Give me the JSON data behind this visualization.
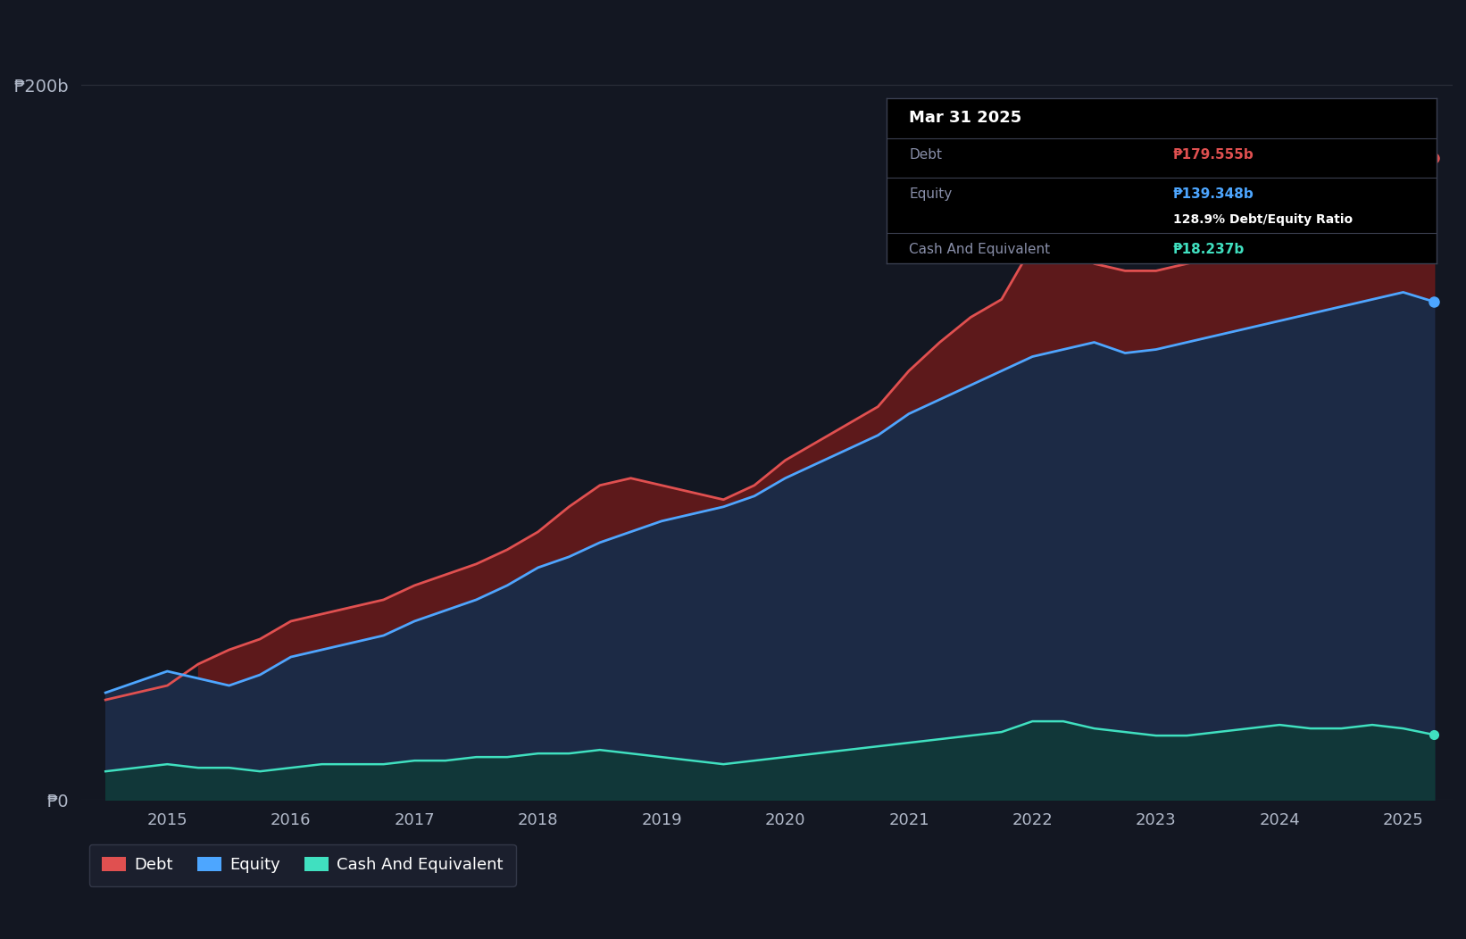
{
  "background_color": "#131722",
  "plot_bg_color": "#131722",
  "grid_color": "#2a2e39",
  "title_box_bg": "#000000",
  "tooltip": {
    "date": "Mar 31 2025",
    "debt_label": "Debt",
    "debt_value": "₱179.555b",
    "equity_label": "Equity",
    "equity_value": "₱139.348b",
    "ratio_text": "128.9% Debt/Equity Ratio",
    "cash_label": "Cash And Equivalent",
    "cash_value": "₱18.237b"
  },
  "ylabel_200": "₱200b",
  "ylabel_0": "₱0",
  "debt_color": "#e05050",
  "equity_color": "#4da6ff",
  "cash_color": "#40e0c0",
  "debt_fill_color": "#6b1a1a",
  "equity_fill_color": "#1e2d4a",
  "cash_fill_color": "#0d3d35",
  "ylim": [
    0,
    220
  ],
  "xlim": [
    2014.3,
    2025.4
  ],
  "years": [
    2014.5,
    2014.75,
    2015.0,
    2015.25,
    2015.5,
    2015.75,
    2016.0,
    2016.25,
    2016.5,
    2016.75,
    2017.0,
    2017.25,
    2017.5,
    2017.75,
    2018.0,
    2018.25,
    2018.5,
    2018.75,
    2019.0,
    2019.25,
    2019.5,
    2019.75,
    2020.0,
    2020.25,
    2020.5,
    2020.75,
    2021.0,
    2021.25,
    2021.5,
    2021.75,
    2022.0,
    2022.25,
    2022.5,
    2022.75,
    2023.0,
    2023.25,
    2023.5,
    2023.75,
    2024.0,
    2024.25,
    2024.5,
    2024.75,
    2025.0,
    2025.25
  ],
  "debt": [
    28,
    30,
    32,
    38,
    42,
    45,
    50,
    52,
    54,
    56,
    60,
    63,
    66,
    70,
    75,
    82,
    88,
    90,
    88,
    86,
    84,
    88,
    95,
    100,
    105,
    110,
    120,
    128,
    135,
    140,
    155,
    158,
    150,
    148,
    148,
    150,
    152,
    155,
    158,
    162,
    168,
    178,
    190,
    179.555
  ],
  "equity": [
    30,
    33,
    36,
    34,
    32,
    35,
    40,
    42,
    44,
    46,
    50,
    53,
    56,
    60,
    65,
    68,
    72,
    75,
    78,
    80,
    82,
    85,
    90,
    94,
    98,
    102,
    108,
    112,
    116,
    120,
    124,
    126,
    128,
    125,
    126,
    128,
    130,
    132,
    134,
    136,
    138,
    140,
    142,
    139.348
  ],
  "cash": [
    8,
    9,
    10,
    9,
    9,
    8,
    9,
    10,
    10,
    10,
    11,
    11,
    12,
    12,
    13,
    13,
    14,
    13,
    12,
    11,
    10,
    11,
    12,
    13,
    14,
    15,
    16,
    17,
    18,
    19,
    22,
    22,
    20,
    19,
    18,
    18,
    19,
    20,
    21,
    20,
    20,
    21,
    20,
    18.237
  ],
  "legend": [
    {
      "label": "Debt",
      "color": "#e05050"
    },
    {
      "label": "Equity",
      "color": "#4da6ff"
    },
    {
      "label": "Cash And Equivalent",
      "color": "#40e0c0"
    }
  ],
  "end_markers": {
    "debt_x": 2025.25,
    "debt_y": 179.555,
    "equity_x": 2025.25,
    "equity_y": 139.348,
    "cash_x": 2025.25,
    "cash_y": 18.237
  },
  "year_positions": [
    2015,
    2016,
    2017,
    2018,
    2019,
    2020,
    2021,
    2022,
    2023,
    2024,
    2025
  ]
}
